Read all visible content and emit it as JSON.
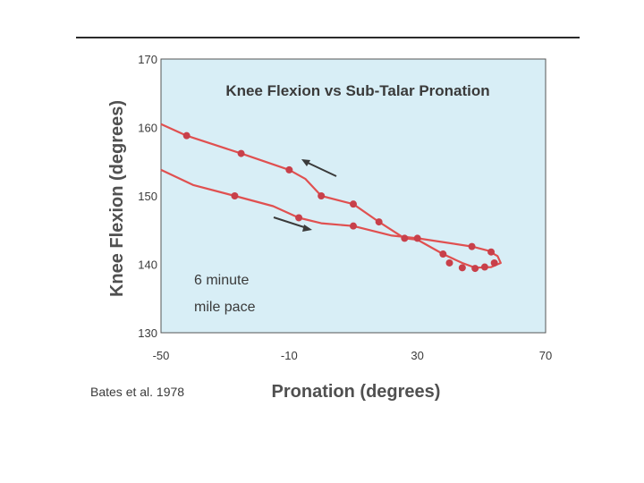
{
  "chart_data": {
    "type": "line",
    "title": "Knee Flexion vs Sub-Talar Pronation",
    "xlabel": "Pronation (degrees)",
    "ylabel": "Knee Flexion (degrees)",
    "xlim": [
      -50,
      70
    ],
    "ylim": [
      130,
      170
    ],
    "xticks": [
      -50,
      -10,
      30,
      70
    ],
    "yticks": [
      130,
      140,
      150,
      160,
      170
    ],
    "grid": false,
    "background_color": "#d8eef6",
    "line_color": "#e05050",
    "marker_color": "#c8404a",
    "annotation": [
      "6 minute",
      "mile pace"
    ],
    "source": "Bates et al. 1978",
    "series": [
      {
        "points": [
          [
            -50,
            160.5
          ],
          [
            -42,
            158.8
          ],
          [
            -25,
            156.2
          ],
          [
            -10,
            153.8
          ],
          [
            -5,
            152.5
          ],
          [
            0,
            150.0
          ],
          [
            10,
            148.8
          ],
          [
            18,
            146.2
          ],
          [
            26,
            143.8
          ],
          [
            30,
            143.6
          ],
          [
            38,
            141.5
          ],
          [
            44,
            140.2
          ],
          [
            48,
            139.5
          ],
          [
            53,
            139.6
          ],
          [
            56,
            140.2
          ],
          [
            55,
            141.2
          ],
          [
            52,
            142.0
          ],
          [
            47,
            142.6
          ],
          [
            30,
            143.8
          ],
          [
            22,
            144.2
          ],
          [
            10,
            145.6
          ],
          [
            0,
            146.0
          ],
          [
            -7,
            146.8
          ],
          [
            -15,
            148.5
          ],
          [
            -27,
            150.0
          ],
          [
            -40,
            151.6
          ],
          [
            -50,
            153.8
          ]
        ],
        "markers": [
          [
            -42,
            158.8
          ],
          [
            -25,
            156.2
          ],
          [
            -10,
            153.8
          ],
          [
            0,
            150.0
          ],
          [
            10,
            148.8
          ],
          [
            18,
            146.2
          ],
          [
            26,
            143.8
          ],
          [
            30,
            143.8
          ],
          [
            38,
            141.5
          ],
          [
            40,
            140.2
          ],
          [
            44,
            139.5
          ],
          [
            48,
            139.4
          ],
          [
            51,
            139.6
          ],
          [
            54,
            140.2
          ],
          [
            53,
            141.8
          ],
          [
            47,
            142.6
          ],
          [
            10,
            145.6
          ],
          [
            -7,
            146.8
          ],
          [
            -27,
            150.0
          ]
        ]
      }
    ]
  }
}
